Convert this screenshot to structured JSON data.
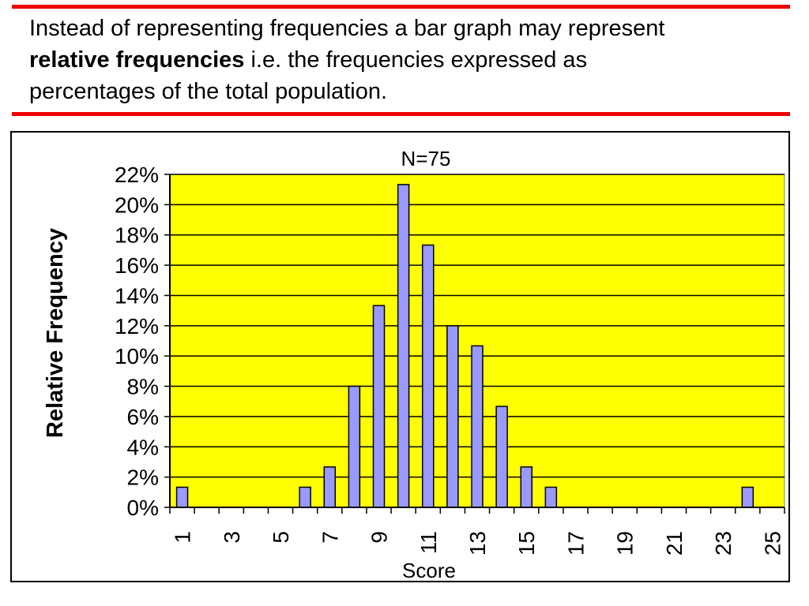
{
  "intro": {
    "line1": "Instead of representing frequencies a bar graph may represent",
    "bold_phrase": "relative frequencies",
    "line2_rest": " i.e. the frequencies expressed as",
    "line3": "percentages of the total population."
  },
  "colors": {
    "rule": "#ee0000",
    "plot_background": "#ffff00",
    "bar_fill": "#9999ff",
    "bar_stroke": "#000000"
  },
  "chart_data": {
    "type": "bar",
    "title": "N=75",
    "xlabel": "Score",
    "ylabel": "Relative Frequency",
    "categories": [
      1,
      2,
      3,
      4,
      5,
      6,
      7,
      8,
      9,
      10,
      11,
      12,
      13,
      14,
      15,
      16,
      17,
      18,
      19,
      20,
      21,
      22,
      23,
      24,
      25
    ],
    "values": [
      1.33,
      0,
      0,
      0,
      0,
      1.33,
      2.67,
      8.0,
      13.33,
      21.33,
      17.33,
      12.0,
      10.67,
      6.67,
      2.67,
      1.33,
      0,
      0,
      0,
      0,
      0,
      0,
      0,
      1.33,
      0
    ],
    "x_tick_labels": [
      "1",
      "3",
      "5",
      "7",
      "9",
      "11",
      "13",
      "15",
      "17",
      "19",
      "21",
      "23",
      "25"
    ],
    "y_tick_labels": [
      "0%",
      "2%",
      "4%",
      "6%",
      "8%",
      "10%",
      "12%",
      "14%",
      "16%",
      "18%",
      "20%",
      "22%"
    ],
    "ylim": [
      0,
      22
    ],
    "y_unit": "%",
    "grid": true,
    "legend": false
  }
}
